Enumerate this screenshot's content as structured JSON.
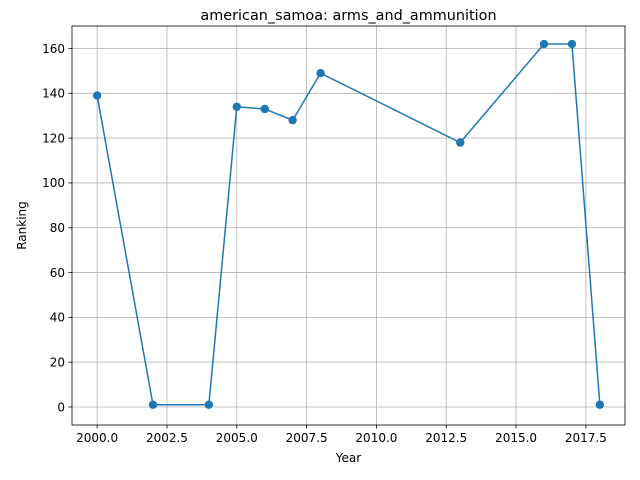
{
  "chart_data": {
    "type": "line",
    "title": "american_samoa: arms_and_ammunition",
    "xlabel": "Year",
    "ylabel": "Ranking",
    "xlim": [
      1999.1,
      2018.9
    ],
    "ylim": [
      -8.05,
      170.05
    ],
    "xticks": [
      2000.0,
      2002.5,
      2005.0,
      2007.5,
      2010.0,
      2012.5,
      2015.0,
      2017.5
    ],
    "xtick_labels": [
      "2000.0",
      "2002.5",
      "2005.0",
      "2007.5",
      "2010.0",
      "2012.5",
      "2015.0",
      "2017.5"
    ],
    "yticks": [
      0,
      20,
      40,
      60,
      80,
      100,
      120,
      140,
      160
    ],
    "ytick_labels": [
      "0",
      "20",
      "40",
      "60",
      "80",
      "100",
      "120",
      "140",
      "160"
    ],
    "grid": true,
    "color": "#1f77b4",
    "series": [
      {
        "x": [
          2000,
          2002,
          2004,
          2005,
          2006,
          2007,
          2008,
          2013,
          2016,
          2017,
          2018
        ],
        "y": [
          139,
          1,
          1,
          134,
          133,
          128,
          149,
          118,
          162,
          162,
          1
        ]
      }
    ]
  }
}
